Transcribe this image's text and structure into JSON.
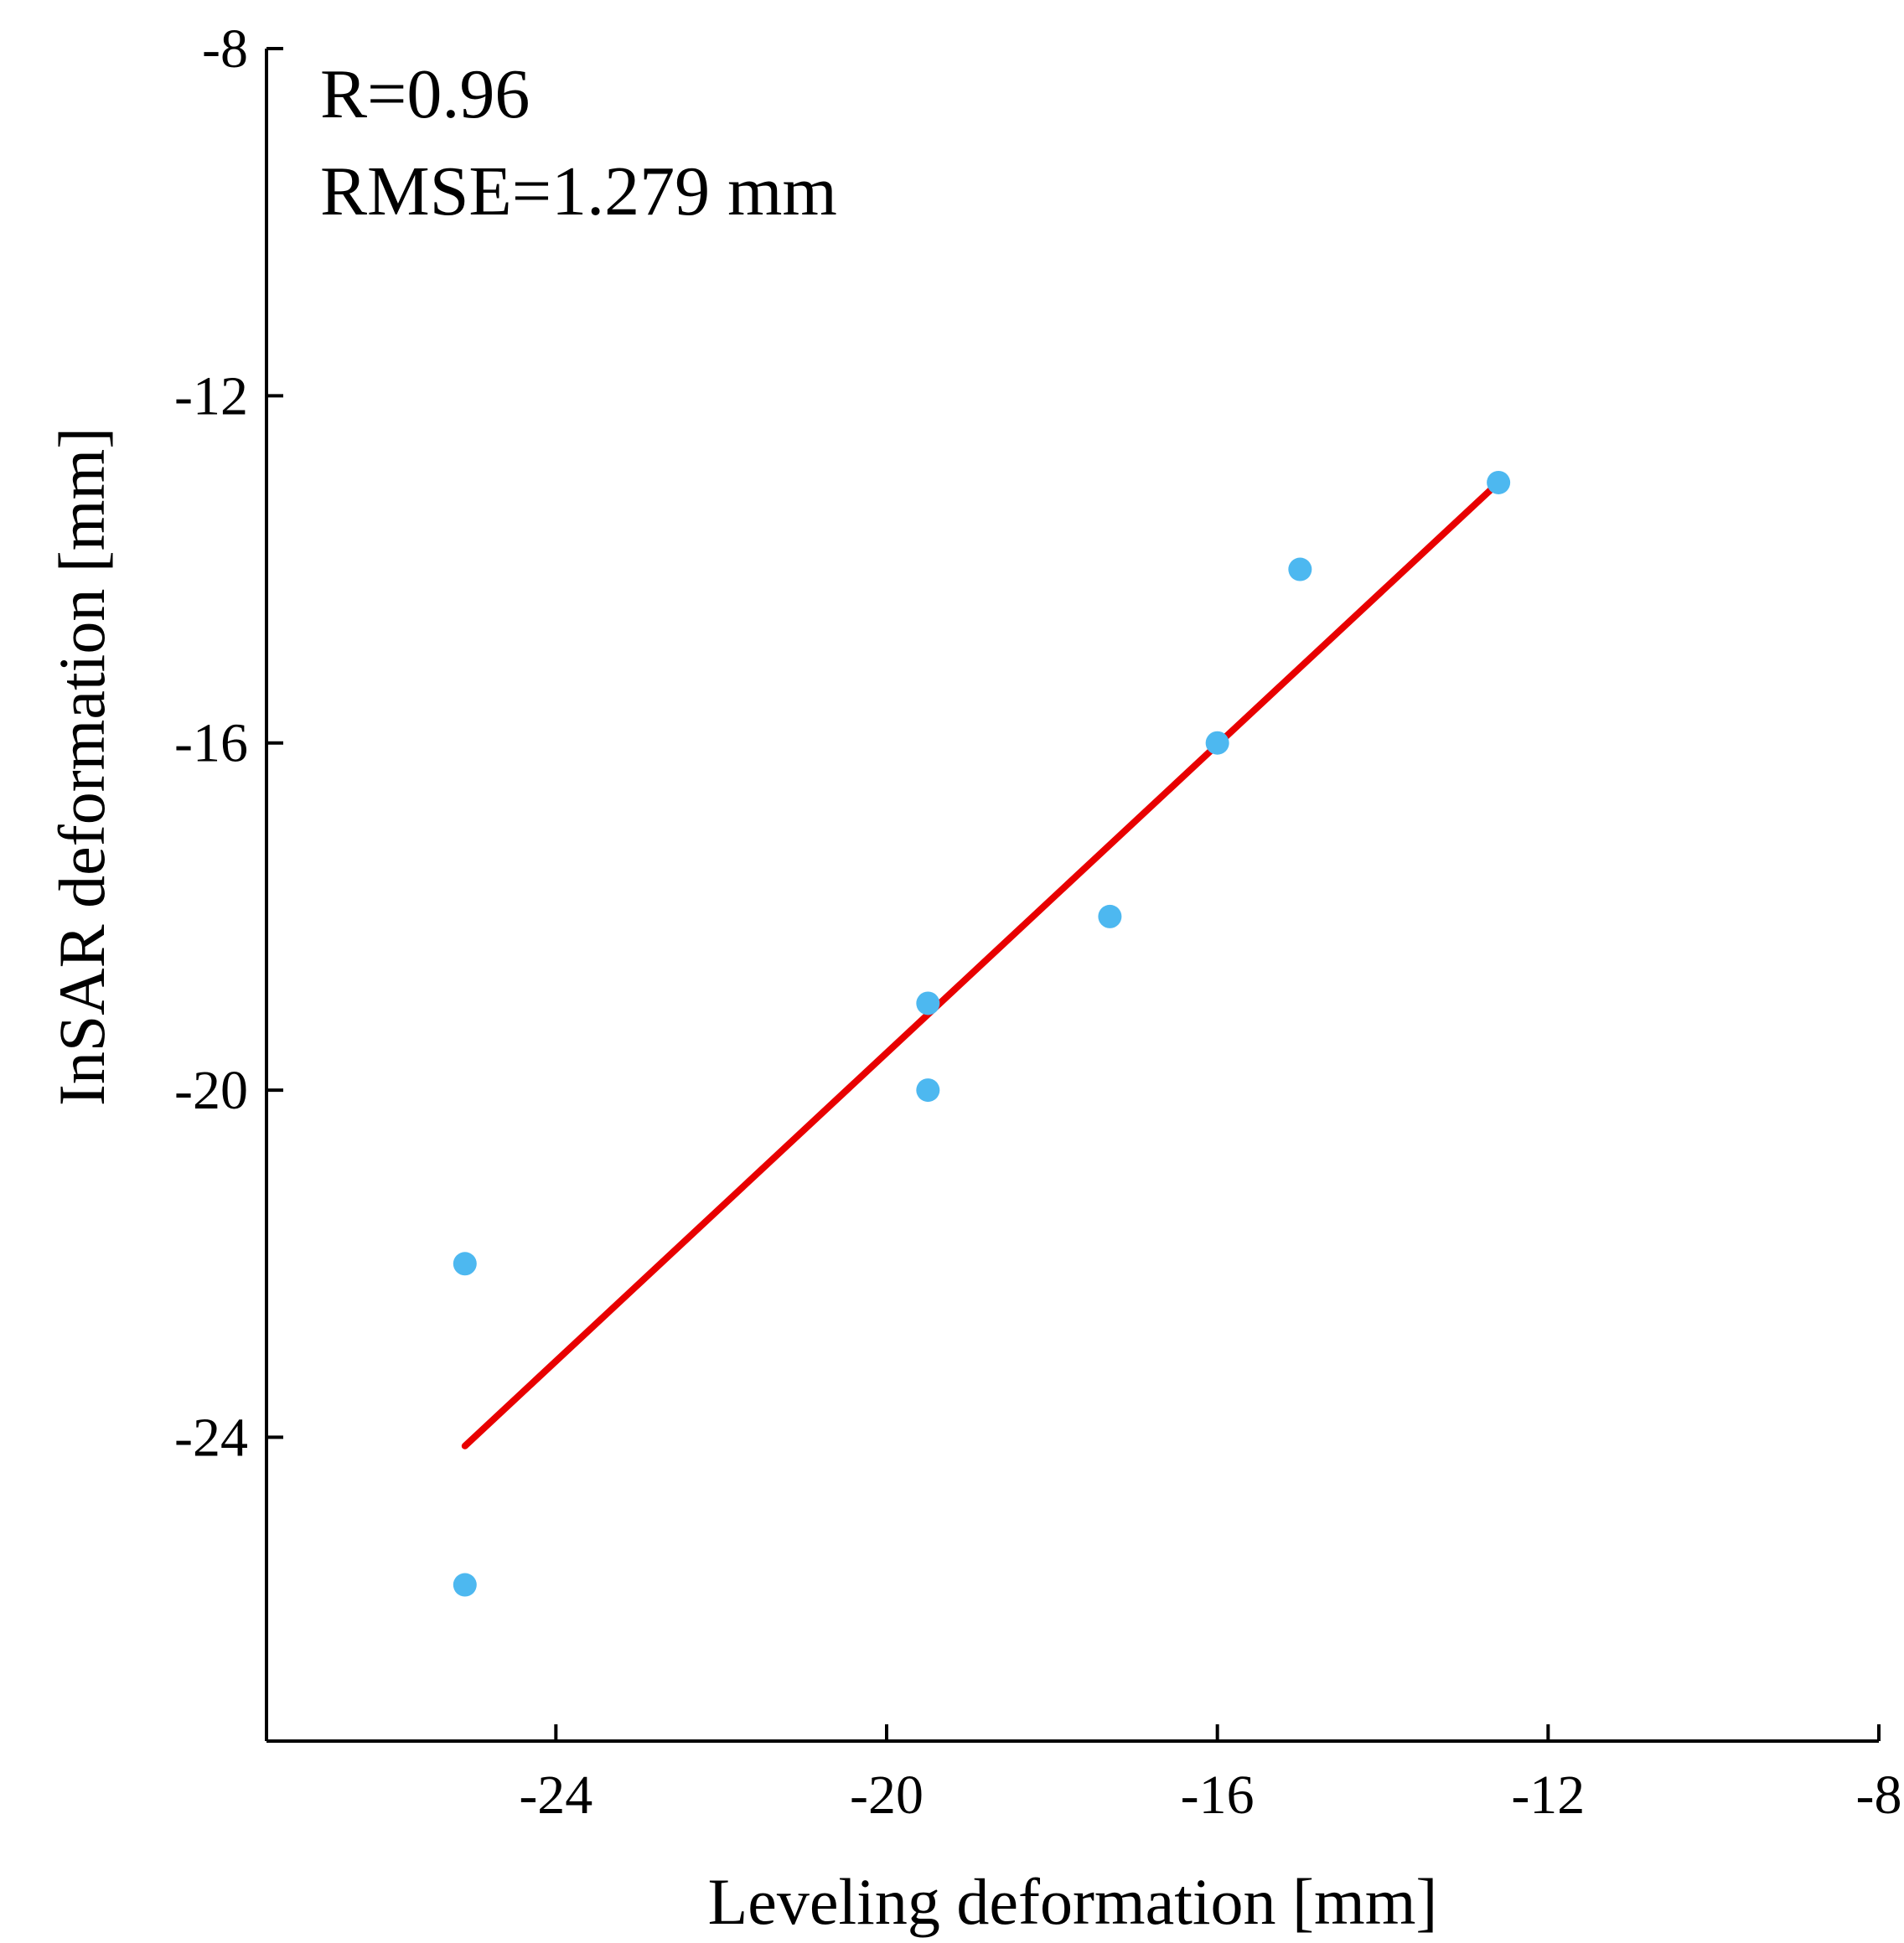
{
  "chart_data": {
    "type": "scatter",
    "title": "",
    "xlabel": "Leveling deformation [mm]",
    "ylabel": "InSAR deformation [mm]",
    "xlim": [
      -27.5,
      -8
    ],
    "ylim": [
      -27.5,
      -8
    ],
    "x_ticks": [
      -24,
      -20,
      -16,
      -12,
      -8
    ],
    "y_ticks": [
      -24,
      -20,
      -16,
      -12,
      -8
    ],
    "x_tick_labels": [
      "-24",
      "-20",
      "-16",
      "-12",
      "-8"
    ],
    "y_tick_labels": [
      "-24",
      "-20",
      "-16",
      "-12",
      "-8"
    ],
    "series": [
      {
        "name": "points",
        "color": "#4db8f0",
        "points": [
          {
            "x": -25.1,
            "y": -22.0
          },
          {
            "x": -25.1,
            "y": -25.7
          },
          {
            "x": -19.5,
            "y": -19.0
          },
          {
            "x": -19.5,
            "y": -20.0
          },
          {
            "x": -17.3,
            "y": -18.0
          },
          {
            "x": -16.0,
            "y": -16.0
          },
          {
            "x": -15.0,
            "y": -14.0
          },
          {
            "x": -12.6,
            "y": -13.0
          }
        ]
      }
    ],
    "fit_line": {
      "color": "#e80000",
      "x": [
        -25.1,
        -12.6
      ],
      "y": [
        -24.1,
        -13.0
      ]
    },
    "annotations": [
      "R=0.96",
      "RMSE=1.279 mm"
    ],
    "grid": false
  }
}
